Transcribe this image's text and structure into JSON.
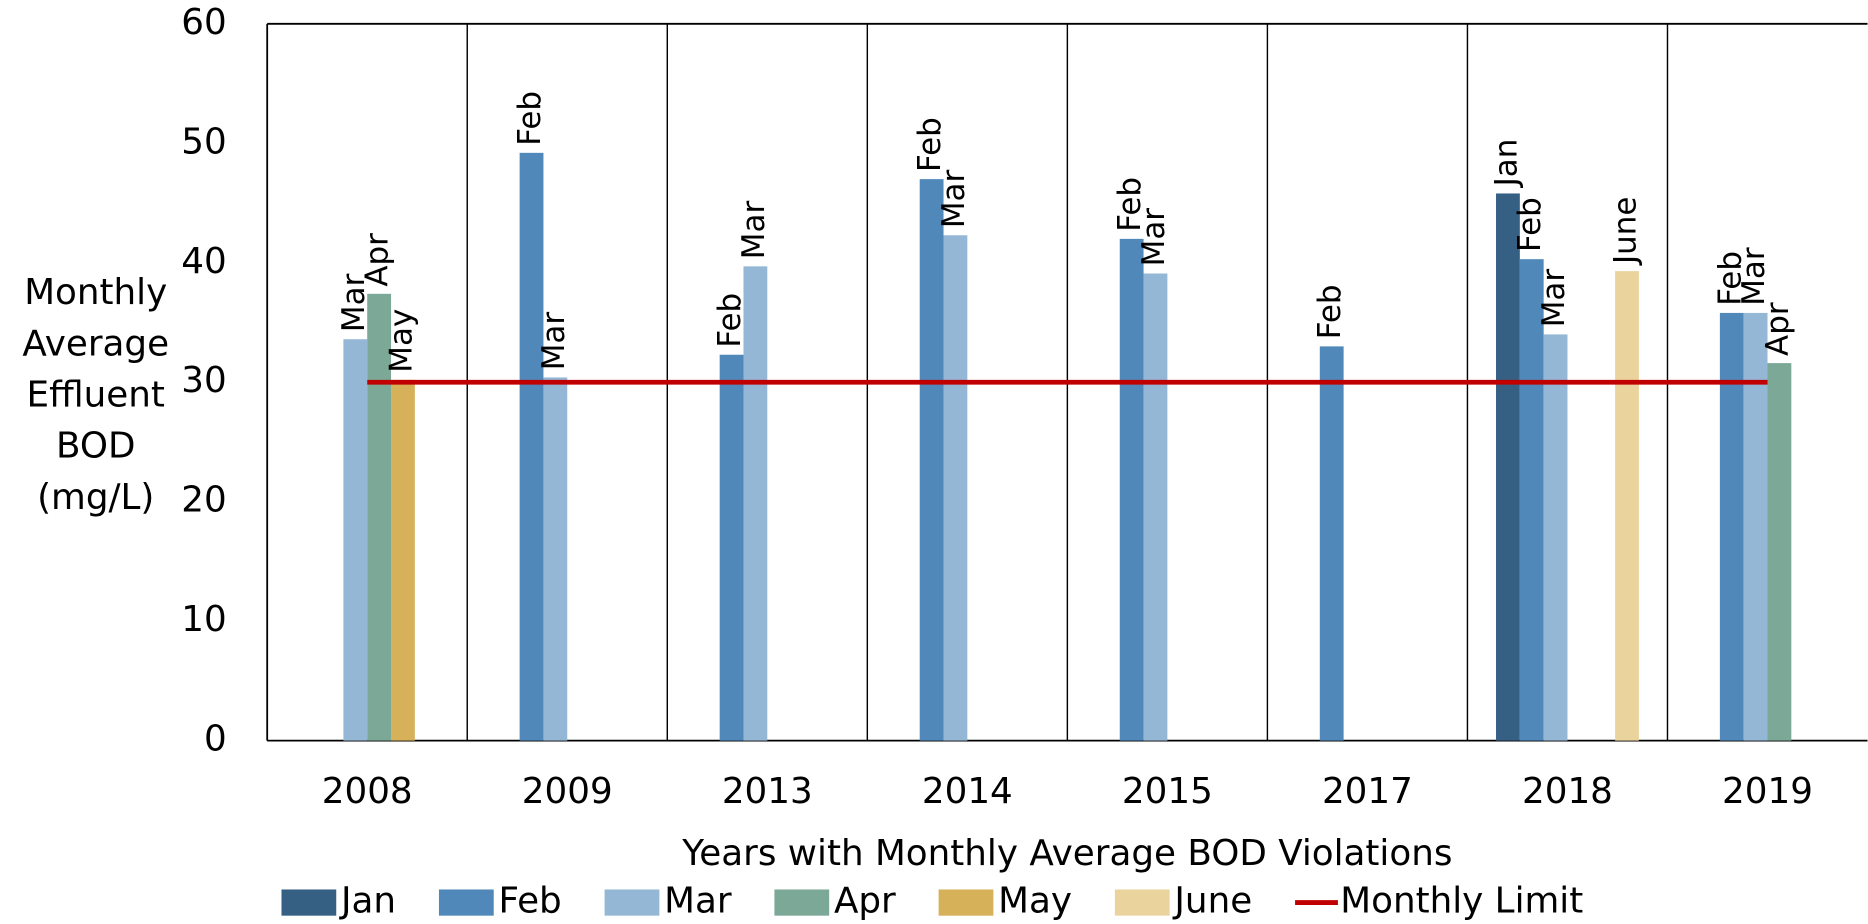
{
  "chart_data": {
    "type": "bar",
    "x_label": "Years with Monthly Average BOD Violations",
    "y_label_lines": [
      "Monthly",
      "Average",
      "Effluent",
      "BOD",
      "(mg/L)"
    ],
    "categories": [
      "2008",
      "2009",
      "2013",
      "2014",
      "2015",
      "2017",
      "2018",
      "2019"
    ],
    "series": [
      {
        "name": "Jan",
        "color": "#365f84",
        "values": [
          null,
          null,
          null,
          null,
          null,
          null,
          45.8,
          null
        ]
      },
      {
        "name": "Feb",
        "color": "#5088ba",
        "values": [
          null,
          49.2,
          32.3,
          47,
          42,
          33,
          40.3,
          35.8
        ]
      },
      {
        "name": "Mar",
        "color": "#95b7d6",
        "values": [
          33.6,
          30.4,
          39.7,
          42.3,
          39.1,
          null,
          34,
          35.8
        ]
      },
      {
        "name": "Apr",
        "color": "#7ba897",
        "values": [
          37.4,
          null,
          null,
          null,
          null,
          null,
          null,
          31.6
        ]
      },
      {
        "name": "May",
        "color": "#d7b05a",
        "values": [
          30.2,
          null,
          null,
          null,
          null,
          null,
          null,
          null
        ]
      },
      {
        "name": "June",
        "color": "#ebd39e",
        "values": [
          null,
          null,
          null,
          null,
          null,
          null,
          39.3,
          null
        ]
      },
      {
        "name": "Monthly Limit",
        "type": "line",
        "color": "#c00000",
        "values": [
          30,
          30,
          30,
          30,
          30,
          30,
          30,
          30
        ]
      }
    ],
    "ylim": [
      0,
      60
    ],
    "yticks": [
      0,
      10,
      20,
      30,
      40,
      50,
      60
    ],
    "grid": true,
    "legend": "bottom"
  }
}
